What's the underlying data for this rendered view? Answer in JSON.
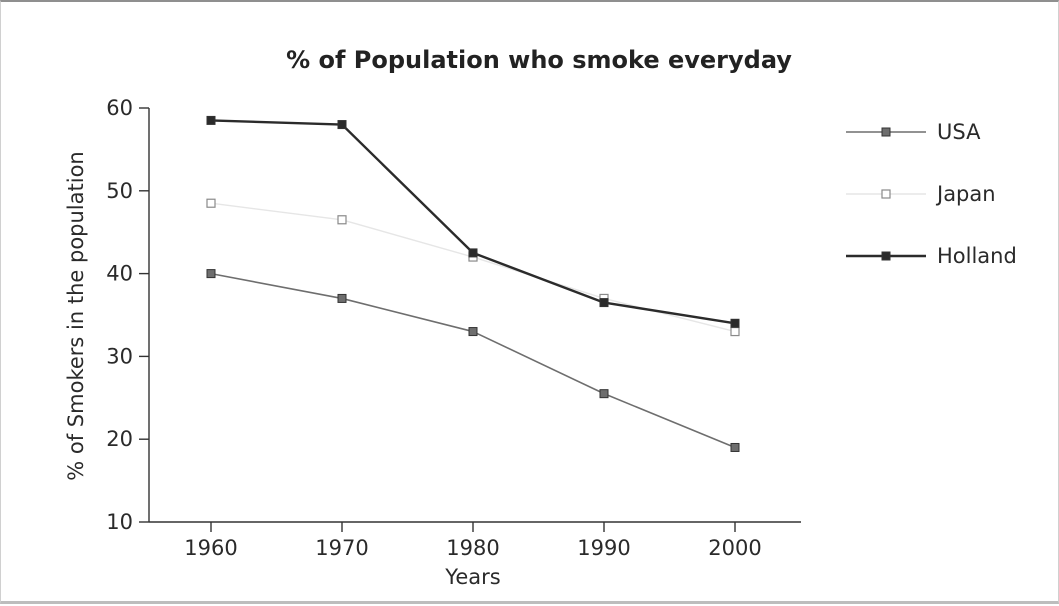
{
  "chart_data": {
    "type": "line",
    "title": "% of Population who smoke everyday",
    "xlabel": "Years",
    "ylabel": "% of Smokers in the population",
    "x": [
      1960,
      1970,
      1980,
      1990,
      2000
    ],
    "xticks": [
      "1960",
      "1970",
      "1980",
      "1990",
      "2000"
    ],
    "yticks": [
      "10",
      "20",
      "30",
      "40",
      "50",
      "60"
    ],
    "ylim": [
      10,
      60
    ],
    "grid": false,
    "legend_position": "right",
    "series": [
      {
        "name": "USA",
        "values": [
          40,
          37,
          33,
          25.5,
          19
        ],
        "color": "#6e6e6e",
        "marker": "filled-square"
      },
      {
        "name": "Japan",
        "values": [
          48.5,
          46.5,
          42,
          37,
          33
        ],
        "color": "#e6e6e6",
        "marker": "hollow-square"
      },
      {
        "name": "Holland",
        "values": [
          58.5,
          58,
          42.5,
          36.5,
          34
        ],
        "color": "#2b2b2b",
        "marker": "filled-square"
      }
    ]
  }
}
